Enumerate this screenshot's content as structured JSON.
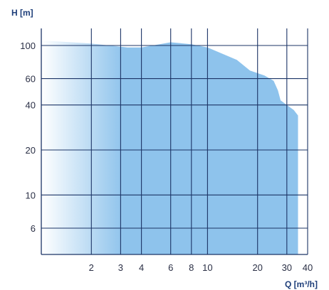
{
  "chart_data": {
    "type": "area",
    "title": "",
    "xlabel": "Q [m³/h]",
    "ylabel": "H [m]",
    "x_scale": "log",
    "y_scale": "log",
    "xlim": [
      1,
      40
    ],
    "ylim": [
      4,
      130
    ],
    "grid": true,
    "x_ticks": [
      2,
      3,
      4,
      6,
      8,
      10,
      20,
      30,
      40
    ],
    "y_ticks": [
      100,
      60,
      40,
      20,
      10,
      6
    ],
    "series": [
      {
        "upper_boundary": [
          {
            "x": 1.0,
            "y": 108
          },
          {
            "x": 2.0,
            "y": 103
          },
          {
            "x": 3.3,
            "y": 97
          },
          {
            "x": 4.0,
            "y": 97
          },
          {
            "x": 6.0,
            "y": 105
          },
          {
            "x": 8.0,
            "y": 102
          },
          {
            "x": 10.0,
            "y": 97
          },
          {
            "x": 15.0,
            "y": 80
          },
          {
            "x": 18.0,
            "y": 68
          },
          {
            "x": 22.0,
            "y": 63
          },
          {
            "x": 25.0,
            "y": 58
          },
          {
            "x": 26.5,
            "y": 50
          },
          {
            "x": 27.5,
            "y": 43
          },
          {
            "x": 30.0,
            "y": 40
          },
          {
            "x": 33.0,
            "y": 37
          },
          {
            "x": 35.0,
            "y": 34
          }
        ],
        "x_max": 35.0,
        "y_min": 4.0
      }
    ],
    "colors": {
      "fill": "#8ec3ec",
      "fill_light": "#ffffff",
      "grid": "#1c3466",
      "text": "#2a2f45"
    }
  }
}
